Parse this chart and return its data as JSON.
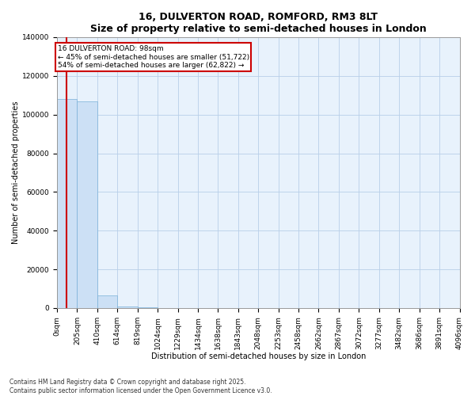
{
  "title": "16, DULVERTON ROAD, ROMFORD, RM3 8LT",
  "subtitle": "Size of property relative to semi-detached houses in London",
  "xlabel": "Distribution of semi-detached houses by size in London",
  "ylabel": "Number of semi-detached properties",
  "property_size": 98,
  "annotation_text": "16 DULVERTON ROAD: 98sqm\n← 45% of semi-detached houses are smaller (51,722)\n54% of semi-detached houses are larger (62,822) →",
  "ylim": [
    0,
    140000
  ],
  "bar_color": "#cce0f5",
  "bar_edge_color": "#7ab0d8",
  "red_line_color": "#cc0000",
  "background_color": "#ffffff",
  "plot_bg_color": "#e8f2fc",
  "grid_color": "#b8cfe8",
  "bin_edges": [
    0,
    205,
    410,
    614,
    819,
    1024,
    1229,
    1434,
    1638,
    1843,
    2048,
    2253,
    2458,
    2662,
    2867,
    3072,
    3277,
    3482,
    3686,
    3891,
    4096
  ],
  "bin_labels": [
    "0sqm",
    "205sqm",
    "410sqm",
    "614sqm",
    "819sqm",
    "1024sqm",
    "1229sqm",
    "1434sqm",
    "1638sqm",
    "1843sqm",
    "2048sqm",
    "2253sqm",
    "2458sqm",
    "2662sqm",
    "2867sqm",
    "3072sqm",
    "3277sqm",
    "3482sqm",
    "3686sqm",
    "3891sqm",
    "4096sqm"
  ],
  "bar_heights": [
    108000,
    107000,
    6500,
    900,
    350,
    180,
    110,
    75,
    55,
    40,
    32,
    26,
    20,
    16,
    13,
    10,
    8,
    6,
    5,
    4
  ],
  "yticks": [
    0,
    20000,
    40000,
    60000,
    80000,
    100000,
    120000,
    140000
  ],
  "title_fontsize": 9,
  "axis_label_fontsize": 7,
  "tick_fontsize": 6.5,
  "footer": "Contains HM Land Registry data © Crown copyright and database right 2025.\nContains public sector information licensed under the Open Government Licence v3.0."
}
